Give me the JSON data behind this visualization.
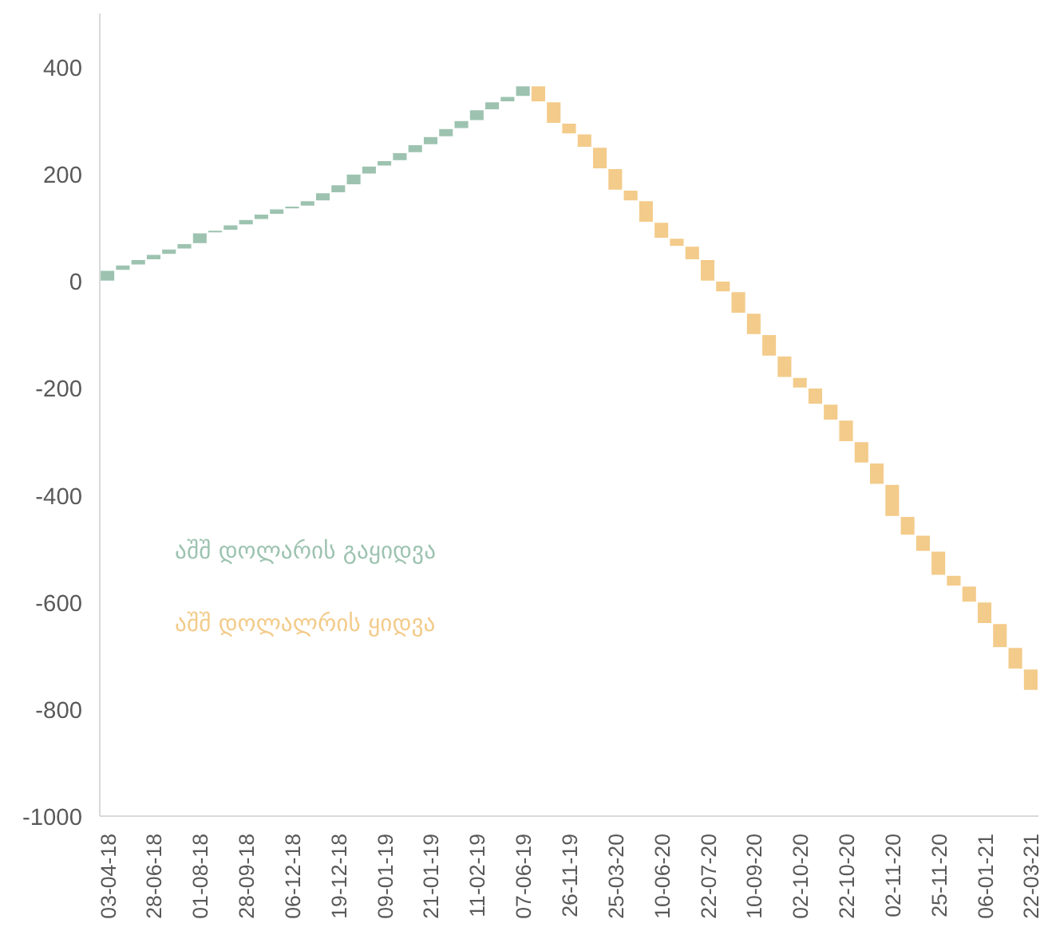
{
  "chart_data": {
    "type": "bar",
    "categories": [
      "03-04-18",
      null,
      null,
      "28-06-18",
      null,
      null,
      "01-08-18",
      null,
      null,
      "28-09-18",
      null,
      null,
      "06-12-18",
      null,
      null,
      "19-12-18",
      null,
      null,
      "09-01-19",
      null,
      null,
      "21-01-19",
      null,
      null,
      "11-02-19",
      null,
      null,
      "07-06-19",
      null,
      null,
      "26-11-19",
      null,
      null,
      "25-03-20",
      null,
      null,
      "10-06-20",
      null,
      null,
      "22-07-20",
      null,
      null,
      "10-09-20",
      null,
      null,
      "02-10-20",
      null,
      null,
      "22-10-20",
      null,
      null,
      "02-11-20",
      null,
      null,
      "25-11-20",
      null,
      null,
      "06-01-21",
      null,
      null,
      "22-03-21"
    ],
    "base": [
      0,
      20,
      30,
      40,
      50,
      60,
      70,
      90,
      95,
      105,
      115,
      125,
      135,
      140,
      150,
      165,
      180,
      200,
      215,
      225,
      240,
      255,
      270,
      285,
      300,
      320,
      335,
      345,
      365,
      335,
      295,
      275,
      250,
      210,
      170,
      150,
      110,
      80,
      65,
      40,
      0,
      -20,
      -60,
      -100,
      -140,
      -180,
      -200,
      -230,
      -260,
      -300,
      -340,
      -380,
      -440,
      -475,
      -505,
      -550,
      -570,
      -600,
      -640,
      -685,
      -725
    ],
    "values": [
      20,
      10,
      10,
      10,
      10,
      10,
      20,
      5,
      10,
      10,
      10,
      10,
      5,
      10,
      15,
      15,
      20,
      15,
      10,
      15,
      15,
      15,
      15,
      15,
      20,
      15,
      10,
      20,
      -30,
      -40,
      -20,
      -25,
      -40,
      -40,
      -20,
      -40,
      -30,
      -15,
      -25,
      -40,
      -20,
      -40,
      -40,
      -40,
      -40,
      -20,
      -30,
      -30,
      -40,
      -40,
      -40,
      -60,
      -35,
      -30,
      -45,
      -20,
      -30,
      -40,
      -45,
      -40,
      -40
    ],
    "colors": [
      "#9dc3b0",
      "#9dc3b0",
      "#9dc3b0",
      "#9dc3b0",
      "#9dc3b0",
      "#9dc3b0",
      "#9dc3b0",
      "#9dc3b0",
      "#9dc3b0",
      "#9dc3b0",
      "#9dc3b0",
      "#9dc3b0",
      "#9dc3b0",
      "#9dc3b0",
      "#9dc3b0",
      "#9dc3b0",
      "#9dc3b0",
      "#9dc3b0",
      "#9dc3b0",
      "#9dc3b0",
      "#9dc3b0",
      "#9dc3b0",
      "#9dc3b0",
      "#9dc3b0",
      "#9dc3b0",
      "#9dc3b0",
      "#9dc3b0",
      "#9dc3b0",
      "#f3cb8a",
      "#f3cb8a",
      "#f3cb8a",
      "#f3cb8a",
      "#f3cb8a",
      "#f3cb8a",
      "#f3cb8a",
      "#f3cb8a",
      "#f3cb8a",
      "#f3cb8a",
      "#f3cb8a",
      "#f3cb8a",
      "#f3cb8a",
      "#f3cb8a",
      "#f3cb8a",
      "#f3cb8a",
      "#f3cb8a",
      "#f3cb8a",
      "#f3cb8a",
      "#f3cb8a",
      "#f3cb8a",
      "#f3cb8a",
      "#f3cb8a",
      "#f3cb8a",
      "#f3cb8a",
      "#f3cb8a",
      "#f3cb8a",
      "#f3cb8a",
      "#f3cb8a",
      "#f3cb8a",
      "#f3cb8a",
      "#f3cb8a",
      "#f3cb8a"
    ],
    "annotations": [
      "აშშ დოლარის გაყიდვა",
      "აშშ დოლალრის ყიდვა"
    ],
    "ylim": [
      -1000,
      500
    ],
    "yticks": [
      -1000,
      -800,
      -600,
      -400,
      -200,
      0,
      200,
      400
    ],
    "grid": false
  }
}
